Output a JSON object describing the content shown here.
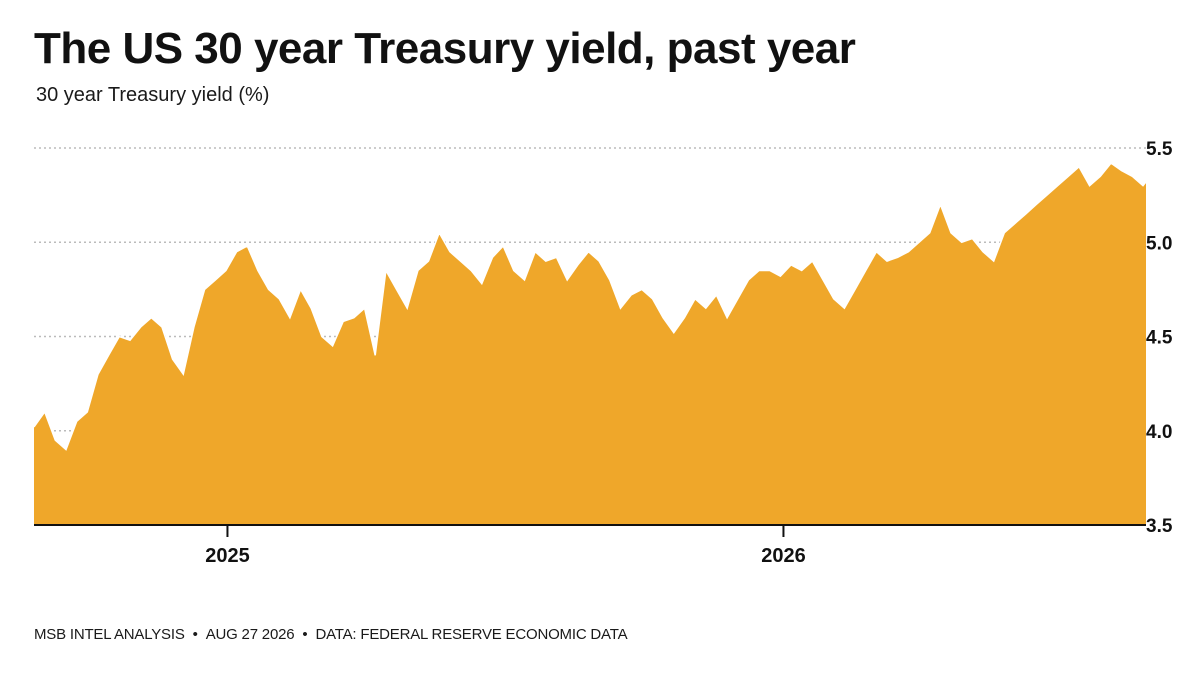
{
  "header": {
    "title": "The US 30 year Treasury yield, past year",
    "subtitle": "30 year Treasury yield (%)"
  },
  "footer": {
    "source_parts": [
      "MSB INTEL ANALYSIS",
      "AUG 27 2026",
      "DATA: FEDERAL RESERVE ECONOMIC DATA"
    ],
    "separator": "•"
  },
  "colors": {
    "area_fill": "#EFA72A",
    "area_edge": "#FFFFFF",
    "gridline": "#BBBBBB"
  },
  "chart_data": {
    "type": "area",
    "title": "The US 30 year Treasury yield, past year",
    "subtitle": "30 year Treasury yield (%)",
    "xlabel": "",
    "ylabel": "",
    "x_ticks": [
      "2025",
      "2026"
    ],
    "y_ticks": [
      "3.5",
      "4.0",
      "4.5",
      "5.0",
      "5.5"
    ],
    "ylim": [
      3.5,
      5.5
    ],
    "grid": "horizontal dotted",
    "legend": "none",
    "series": [
      {
        "x": [
          "2024-08-27",
          "2024-09-03",
          "2024-09-10",
          "2024-09-17",
          "2024-09-24",
          "2024-10-01",
          "2024-10-08",
          "2024-10-15",
          "2024-10-22",
          "2024-10-29",
          "2024-11-05",
          "2024-11-12",
          "2024-11-19",
          "2024-11-26",
          "2024-12-03",
          "2024-12-10",
          "2024-12-17",
          "2024-12-24",
          "2024-12-31",
          "2025-01-07",
          "2025-01-14",
          "2025-01-21",
          "2025-01-28",
          "2025-02-04",
          "2025-02-11",
          "2025-02-18",
          "2025-02-25",
          "2025-03-04",
          "2025-03-11",
          "2025-03-18",
          "2025-03-25",
          "2025-04-01",
          "2025-04-08",
          "2025-04-15",
          "2025-04-22",
          "2025-04-29",
          "2025-05-06",
          "2025-05-13",
          "2025-05-20",
          "2025-05-27",
          "2025-06-03",
          "2025-06-10",
          "2025-06-17",
          "2025-06-24",
          "2025-07-01",
          "2025-07-08",
          "2025-07-15",
          "2025-07-22",
          "2025-07-29",
          "2025-08-05",
          "2025-08-12",
          "2025-08-19",
          "2025-08-26",
          "2025-09-02",
          "2025-09-09",
          "2025-09-16",
          "2025-09-23",
          "2025-09-30",
          "2025-10-07",
          "2025-10-14",
          "2025-10-21",
          "2025-10-28",
          "2025-11-04",
          "2025-11-11",
          "2025-11-18",
          "2025-11-25",
          "2025-12-02",
          "2025-12-09",
          "2025-12-16",
          "2025-12-23",
          "2025-12-30",
          "2026-01-06",
          "2026-01-13",
          "2026-01-20",
          "2026-01-27",
          "2026-02-03",
          "2026-02-10",
          "2026-02-17",
          "2026-02-24",
          "2026-03-03",
          "2026-03-10",
          "2026-03-17",
          "2026-03-24",
          "2026-03-31",
          "2026-04-07",
          "2026-04-14",
          "2026-04-21",
          "2026-04-28",
          "2026-05-05",
          "2026-05-12",
          "2026-05-19",
          "2026-05-26",
          "2026-06-02",
          "2026-06-09",
          "2026-06-16",
          "2026-06-23",
          "2026-06-30",
          "2026-07-07",
          "2026-07-14",
          "2026-07-21",
          "2026-07-28",
          "2026-08-04",
          "2026-08-11",
          "2026-08-18",
          "2026-08-25",
          "2026-08-27"
        ],
        "values": [
          4.02,
          4.1,
          3.95,
          3.9,
          4.05,
          4.1,
          4.3,
          4.4,
          4.5,
          4.48,
          4.55,
          4.6,
          4.55,
          4.38,
          4.3,
          4.55,
          4.75,
          4.8,
          4.85,
          4.95,
          4.98,
          4.85,
          4.75,
          4.7,
          4.6,
          4.75,
          4.65,
          4.5,
          4.45,
          4.58,
          4.6,
          4.65,
          4.4,
          4.85,
          4.75,
          4.65,
          4.85,
          4.9,
          5.05,
          4.95,
          4.9,
          4.85,
          4.78,
          4.92,
          4.98,
          4.85,
          4.8,
          4.95,
          4.9,
          4.92,
          4.8,
          4.88,
          4.95,
          4.9,
          4.8,
          4.65,
          4.72,
          4.75,
          4.7,
          4.6,
          4.52,
          4.6,
          4.7,
          4.65,
          4.72,
          4.6,
          4.7,
          4.8,
          4.85,
          4.85,
          4.82,
          4.88,
          4.85,
          4.9,
          4.8,
          4.7,
          4.65,
          4.75,
          4.85,
          4.95,
          4.9,
          4.92,
          4.95,
          5.0,
          5.05,
          5.2,
          5.05,
          5.0,
          5.02,
          4.95,
          4.9,
          5.05,
          5.1,
          5.15,
          5.2,
          5.25,
          5.3,
          5.35,
          5.4,
          5.3,
          5.35,
          5.42,
          5.38,
          5.35,
          5.3,
          5.32
        ]
      }
    ]
  }
}
